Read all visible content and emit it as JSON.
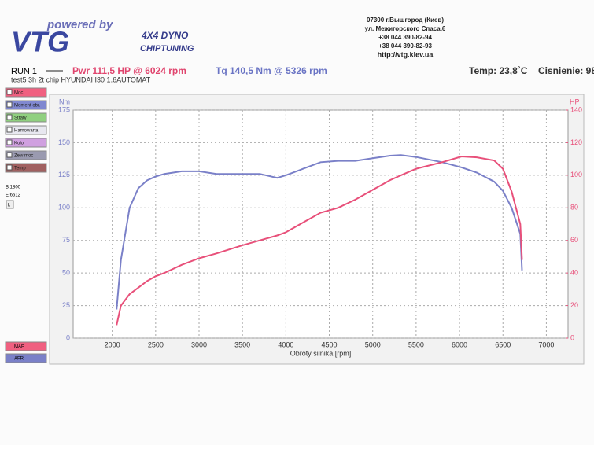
{
  "header": {
    "powered": "powered by",
    "logo": "VTG",
    "dyno": "4X4 DYNO",
    "tuning": "CHIPTUNING",
    "address": [
      "07300 г.Вышгород (Киев)",
      "ул. Межигорского Спаса,6",
      "+38 044 390-82-94",
      "+38 044 390-82-93",
      "http://vtg.kiev.ua"
    ]
  },
  "run": {
    "name": "RUN 1",
    "power": "Pwr  111,5 HP @ 6024 rpm",
    "torque": "Tq 140,5 Nm @ 5326 rpm",
    "temp": "Temp: 23,8˚C",
    "pressure": "Cisnienie: 98",
    "test": "test5  3h 2t chip HYUNDAI I30 1.6AUTOMAT"
  },
  "sidebar": {
    "buttons": [
      "Moc",
      "Moment obr.",
      "Straty",
      "Hamowana",
      "Kolo",
      "Zew moc",
      "Temp"
    ],
    "begin": "B:1800",
    "end": "E:6612",
    "key": "k",
    "bottom": [
      "MAP",
      "AFR"
    ]
  },
  "chart_data": {
    "type": "line",
    "xlabel": "Obroty silnika [rpm]",
    "ylabel": "Nm",
    "y2label": "HP",
    "x": [
      2050,
      2100,
      2200,
      2300,
      2400,
      2500,
      2600,
      2800,
      3000,
      3200,
      3500,
      3700,
      3900,
      4000,
      4200,
      4400,
      4600,
      4800,
      5000,
      5200,
      5326,
      5500,
      5800,
      6024,
      6200,
      6400,
      6500,
      6600,
      6700,
      6720
    ],
    "series": [
      {
        "name": "Tq",
        "color": "#7a80c8",
        "values": [
          22,
          60,
          100,
          115,
          121,
          124,
          126,
          128,
          128,
          126,
          126,
          126,
          123,
          125,
          130,
          135,
          136,
          136,
          138,
          140,
          140.5,
          139,
          135,
          131,
          127,
          120,
          113,
          100,
          80,
          52
        ]
      },
      {
        "name": "Pwr",
        "color": "#e8507a",
        "axis": "y2",
        "values": [
          8,
          20,
          27,
          31,
          35,
          38,
          40,
          45,
          49,
          52,
          57,
          60,
          63,
          65,
          71,
          77,
          80,
          85,
          91,
          97,
          100,
          104,
          108,
          111.5,
          111,
          109,
          104,
          90,
          70,
          48
        ]
      }
    ],
    "xlim": [
      1550,
      7250
    ],
    "xticks": [
      2000,
      2500,
      3000,
      3500,
      4000,
      4500,
      5000,
      5500,
      6000,
      6500,
      7000
    ],
    "ylim": [
      0,
      175
    ],
    "yticks": [
      0,
      25,
      50,
      75,
      100,
      125,
      150,
      175
    ],
    "y2lim": [
      0,
      140
    ],
    "y2ticks": [
      0,
      20,
      40,
      60,
      80,
      100,
      120,
      140
    ],
    "grid": true
  }
}
